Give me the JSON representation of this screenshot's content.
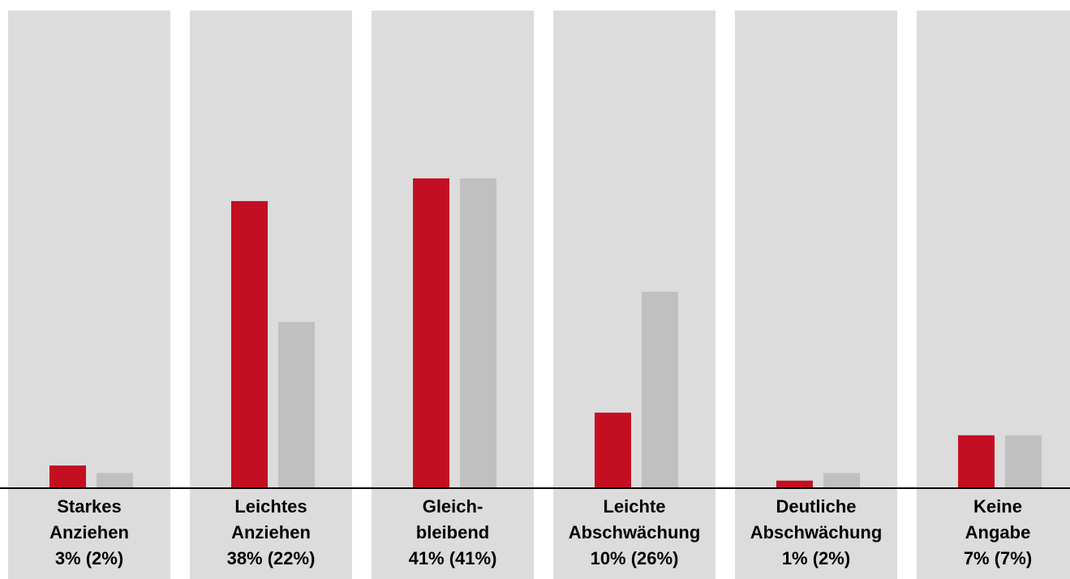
{
  "chart_data": {
    "type": "bar",
    "categories": [
      {
        "line1": "Starkes",
        "line2": "Anziehen",
        "line3": "3% (2%)"
      },
      {
        "line1": "Leichtes",
        "line2": "Anziehen",
        "line3": "38% (22%)"
      },
      {
        "line1": "Gleich-",
        "line2": "bleibend",
        "line3": "41% (41%)"
      },
      {
        "line1": "Leichte",
        "line2": "Abschwächung",
        "line3": "10% (26%)"
      },
      {
        "line1": "Deutliche",
        "line2": "Abschwächung",
        "line3": "1% (2%)"
      },
      {
        "line1": "Keine",
        "line2": "Angabe",
        "line3": "7% (7%)"
      }
    ],
    "series": [
      {
        "values": [
          3,
          38,
          41,
          10,
          1,
          7
        ],
        "color": "#c40f23"
      },
      {
        "values": [
          2,
          22,
          41,
          26,
          2,
          7
        ],
        "color": "#c0c0c0"
      }
    ],
    "ylim": [
      0,
      41
    ],
    "panel_color": "#dcdcdc",
    "grid": false,
    "legend": "none"
  }
}
